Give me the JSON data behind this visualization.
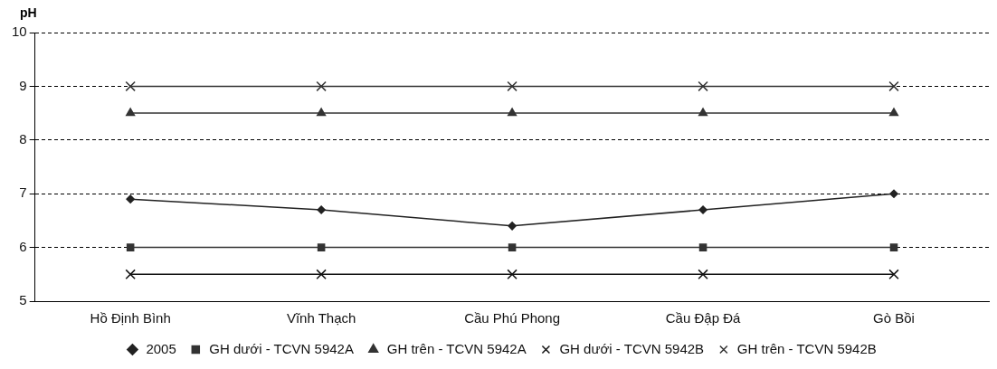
{
  "chart_data": {
    "type": "line",
    "ylabel": "pH",
    "categories": [
      "Hồ Định Bình",
      "Vĩnh Thạch",
      "Cầu Phú Phong",
      "Cầu Đập Đá",
      "Gò Bồi"
    ],
    "series": [
      {
        "name": "2005",
        "color": "#222222",
        "marker": "diamond",
        "values": [
          6.9,
          6.7,
          6.4,
          6.7,
          7.0
        ]
      },
      {
        "name": "GH dưới - TCVN 5942A",
        "color": "#333333",
        "marker": "square",
        "values": [
          6,
          6,
          6,
          6,
          6
        ]
      },
      {
        "name": "GH trên - TCVN 5942A",
        "color": "#333333",
        "marker": "triangle",
        "values": [
          8.5,
          8.5,
          8.5,
          8.5,
          8.5
        ]
      },
      {
        "name": "GH dưới - TCVN 5942B",
        "color": "#111111",
        "marker": "cross",
        "values": [
          5.5,
          5.5,
          5.5,
          5.5,
          5.5
        ]
      },
      {
        "name": "GH trên - TCVN 5942B",
        "color": "#333333",
        "marker": "cross",
        "values": [
          9,
          9,
          9,
          9,
          9
        ]
      }
    ],
    "ylim": [
      5,
      10
    ],
    "yticks": [
      5,
      6,
      7,
      8,
      9,
      10
    ],
    "grid": "y",
    "legend": "bottom"
  }
}
